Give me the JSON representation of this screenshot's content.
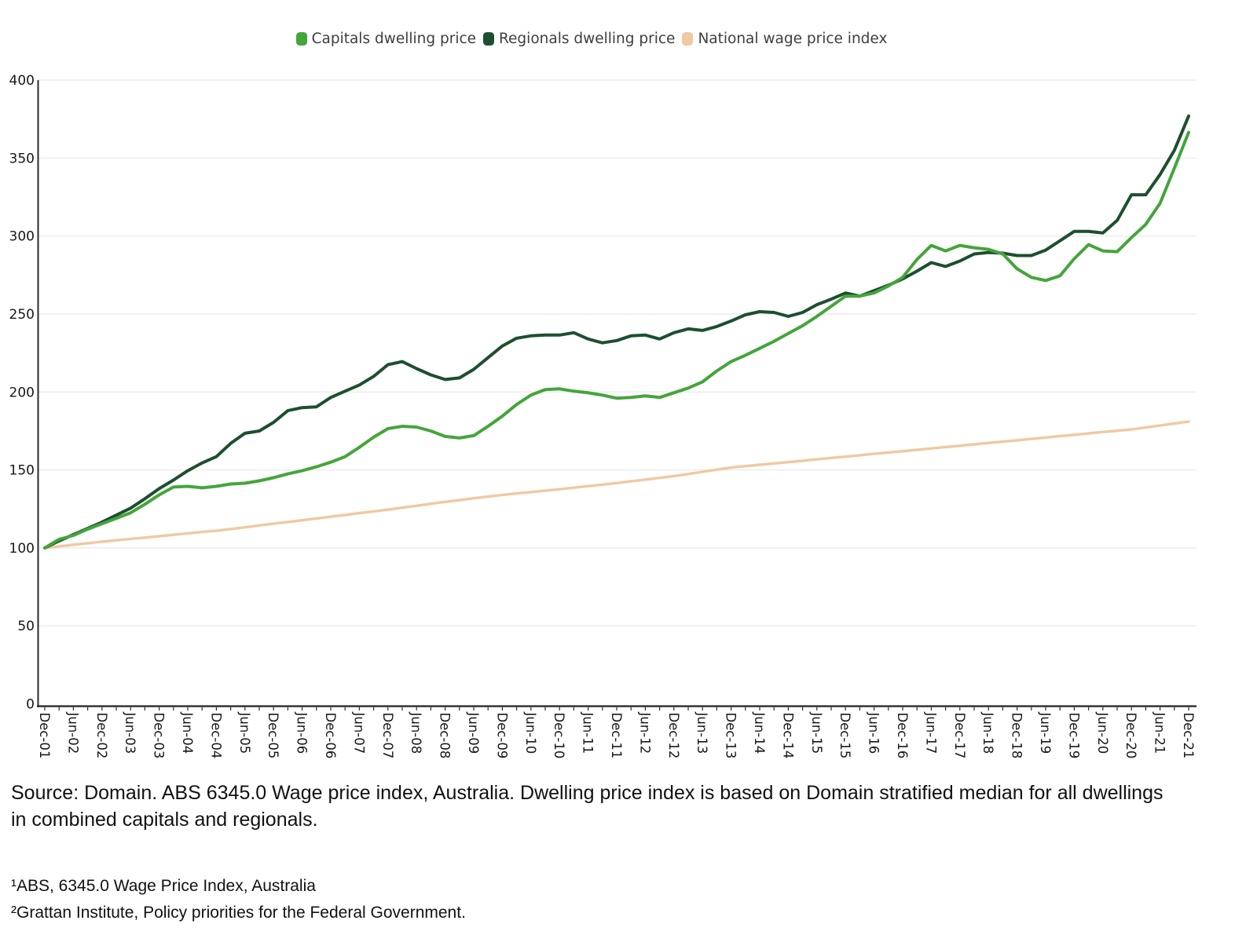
{
  "legend": {
    "items": [
      {
        "label": "Capitals dwelling price",
        "color": "#44a53a"
      },
      {
        "label": "Regionals dwelling price",
        "color": "#1d4f2e"
      },
      {
        "label": "National wage price index",
        "color": "#f0c9a2"
      }
    ]
  },
  "chart_data": {
    "type": "line",
    "title": "",
    "xlabel": "",
    "ylabel": "",
    "ylim": [
      0,
      400
    ],
    "y_ticks": [
      0,
      50,
      100,
      150,
      200,
      250,
      300,
      350,
      400
    ],
    "grid": true,
    "legend_position": "top-center",
    "x_frequency": "quarterly from Dec-2001 to Dec-2021 (81 points per series)",
    "x_tick_labels": [
      "Dec-01",
      "Jun-02",
      "Dec-02",
      "Jun-03",
      "Dec-03",
      "Jun-04",
      "Dec-04",
      "Jun-05",
      "Dec-05",
      "Jun-06",
      "Dec-06",
      "Jun-07",
      "Dec-07",
      "Jun-08",
      "Dec-08",
      "Jun-09",
      "Dec-09",
      "Jun-10",
      "Dec-10",
      "Jun-11",
      "Dec-11",
      "Jun-12",
      "Dec-12",
      "Jun-13",
      "Dec-13",
      "Jun-14",
      "Dec-14",
      "Jun-15",
      "Dec-15",
      "Jun-16",
      "Dec-16",
      "Jun-17",
      "Dec-17",
      "Jun-18",
      "Dec-18",
      "Jun-19",
      "Dec-19",
      "Jun-20",
      "Dec-20",
      "Jun-21",
      "Dec-21"
    ],
    "series": [
      {
        "name": "Capitals dwelling price",
        "color": "#44a53a",
        "values": [
          100,
          105.5,
          108,
          112,
          115.5,
          119,
          122.5,
          128,
          134,
          139,
          139.5,
          138.5,
          139.5,
          141,
          141.5,
          143,
          145,
          147.5,
          149.5,
          152,
          155,
          158.5,
          164.5,
          171,
          176.5,
          178,
          177.5,
          175,
          171.5,
          170.5,
          172,
          178,
          184.5,
          192,
          198,
          201.5,
          202,
          200.5,
          199.5,
          198,
          196,
          196.5,
          197.5,
          196.5,
          199.5,
          202.5,
          206.5,
          213.5,
          219.5,
          223.5,
          228,
          232.5,
          237.5,
          242.5,
          248.5,
          255,
          261.5,
          261.5,
          263.5,
          268,
          273.5,
          285,
          294,
          290.5,
          294,
          292.5,
          291.5,
          288.5,
          279,
          273.5,
          271.5,
          274.5,
          285.5,
          294.5,
          290.5,
          290,
          299,
          307.5,
          321,
          343.5,
          366.5
        ]
      },
      {
        "name": "Regionals dwelling price",
        "color": "#1d4f2e",
        "values": [
          100,
          104.5,
          108.5,
          112.5,
          116.5,
          121,
          125.5,
          131.5,
          138,
          143.5,
          149.5,
          154.5,
          158.5,
          167,
          173.5,
          175,
          180.5,
          188,
          190,
          190.5,
          196.5,
          200.5,
          204.5,
          210,
          217.5,
          219.5,
          215,
          211,
          208,
          209,
          214.5,
          222,
          229.5,
          234.5,
          236,
          236.5,
          236.5,
          238,
          234,
          231.5,
          233,
          236,
          236.5,
          234,
          238,
          240.5,
          239.5,
          242,
          245.5,
          249.5,
          251.5,
          251,
          248.5,
          251,
          256,
          259.5,
          263.5,
          261.5,
          265,
          268.5,
          272.5,
          277.5,
          283,
          280.5,
          284,
          288.5,
          289.5,
          289,
          287.5,
          287.5,
          291,
          297,
          303,
          303,
          302,
          310,
          326.5,
          326.5,
          339.5,
          355,
          377
        ]
      },
      {
        "name": "National wage price index",
        "color": "#f0c9a2",
        "values": [
          100,
          101,
          102,
          103,
          104,
          104.9,
          105.8,
          106.6,
          107.5,
          108.4,
          109.3,
          110.2,
          111,
          112.1,
          113.2,
          114.4,
          115.5,
          116.6,
          117.7,
          118.9,
          120,
          121.1,
          122.3,
          123.4,
          124.5,
          125.8,
          127,
          128.3,
          129.5,
          130.6,
          131.8,
          132.9,
          134,
          134.9,
          135.8,
          136.7,
          137.6,
          138.6,
          139.6,
          140.6,
          141.6,
          142.7,
          143.8,
          144.9,
          146,
          147.4,
          148.8,
          150.2,
          151.5,
          152.4,
          153.3,
          154.2,
          155,
          155.9,
          156.8,
          157.7,
          158.5,
          159.4,
          160.3,
          161.2,
          162,
          162.9,
          163.8,
          164.7,
          165.5,
          166.4,
          167.3,
          168.2,
          169,
          169.9,
          170.8,
          171.7,
          172.5,
          173.4,
          174.3,
          175.2,
          176,
          177.3,
          178.5,
          179.8,
          181
        ]
      }
    ]
  },
  "source_note": {
    "lines": [
      "Source: Domain. ABS 6345.0 Wage price index, Australia. Dwelling price index is based on Domain stratified median for all dwellings",
      "in combined capitals and regionals."
    ]
  },
  "footnotes": [
    "¹ABS, 6345.0 Wage Price Index, Australia",
    "²Grattan Institute, Policy priorities for the Federal Government."
  ]
}
